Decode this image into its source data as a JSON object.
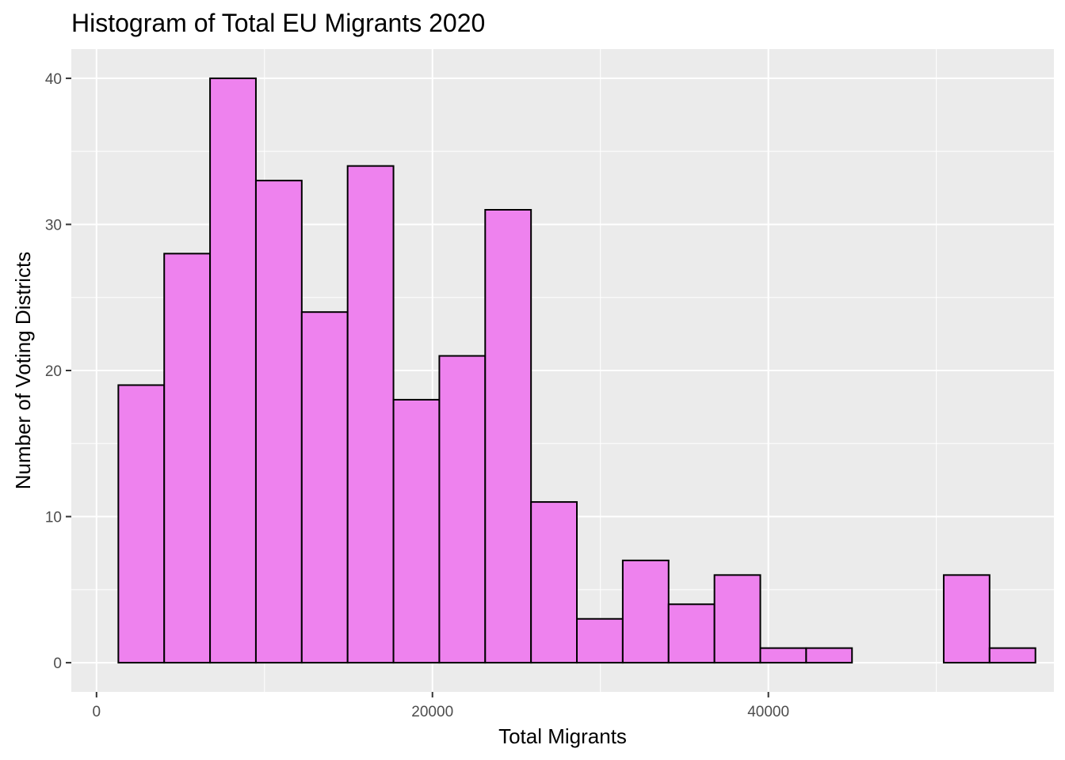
{
  "chart_data": {
    "type": "bar",
    "title": "Histogram of Total EU Migrants 2020",
    "xlabel": "Total Migrants",
    "ylabel": "Number of Voting Districts",
    "xlim": [
      -1500,
      57000
    ],
    "ylim": [
      -2,
      42
    ],
    "x_ticks": [
      0,
      20000,
      40000
    ],
    "x_tick_labels": [
      "0",
      "20000",
      "40000"
    ],
    "y_ticks": [
      0,
      10,
      20,
      30,
      40
    ],
    "y_tick_labels": [
      "0",
      "10",
      "20",
      "30",
      "40"
    ],
    "bin_width": 2730,
    "bins_start": 1300,
    "counts": [
      19,
      28,
      40,
      33,
      24,
      34,
      18,
      21,
      31,
      11,
      3,
      7,
      4,
      6,
      1,
      1,
      0,
      0,
      6,
      1
    ],
    "bar_fill": "#ee82ee",
    "bar_outline": "#000000",
    "panel_background": "#ebebeb",
    "grid": true
  }
}
